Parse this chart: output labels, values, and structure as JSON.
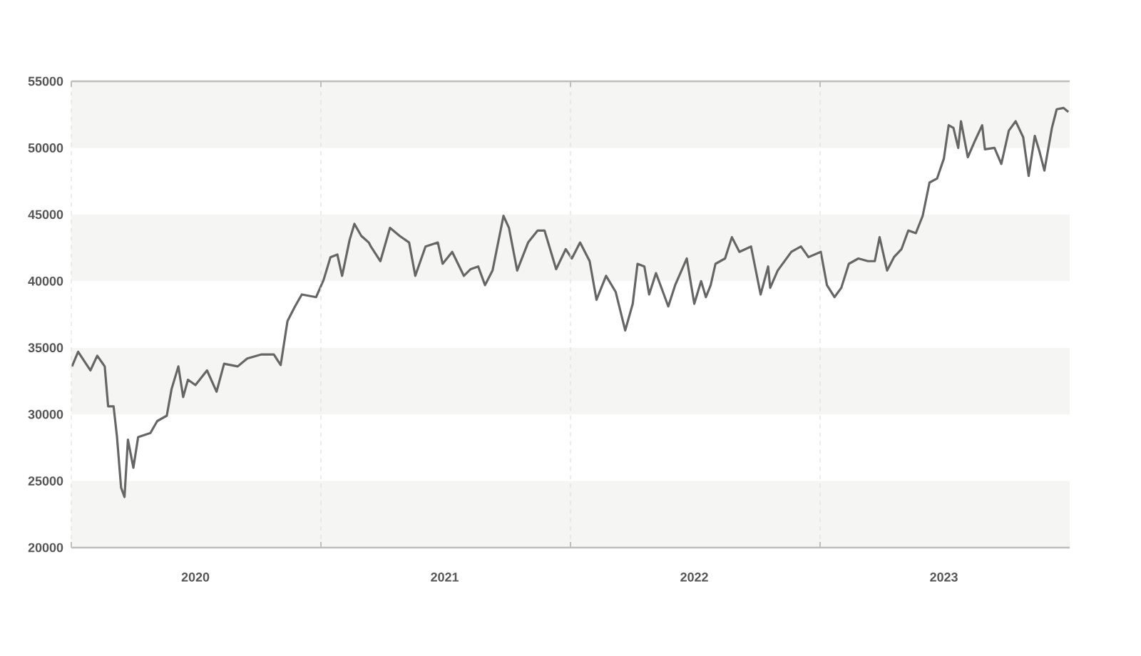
{
  "chart_data": {
    "type": "line",
    "x": [
      "2020-01-02",
      "2020-01-11",
      "2020-01-29",
      "2020-02-08",
      "2020-02-19",
      "2020-02-24",
      "2020-03-03",
      "2020-03-08",
      "2020-03-14",
      "2020-03-19",
      "2020-03-24",
      "2020-04-01",
      "2020-04-08",
      "2020-04-26",
      "2020-05-06",
      "2020-05-20",
      "2020-05-27",
      "2020-06-06",
      "2020-06-13",
      "2020-06-20",
      "2020-07-01",
      "2020-07-18",
      "2020-08-01",
      "2020-08-12",
      "2020-09-01",
      "2020-09-15",
      "2020-10-06",
      "2020-10-24",
      "2020-11-03",
      "2020-11-13",
      "2020-11-24",
      "2020-12-04",
      "2020-12-25",
      "2021-01-05",
      "2021-01-15",
      "2021-01-25",
      "2021-02-01",
      "2021-02-12",
      "2021-02-19",
      "2021-03-01",
      "2021-03-12",
      "2021-03-15",
      "2021-03-29",
      "2021-04-12",
      "2021-04-26",
      "2021-05-10",
      "2021-05-19",
      "2021-06-03",
      "2021-06-21",
      "2021-06-28",
      "2021-07-12",
      "2021-07-29",
      "2021-08-08",
      "2021-08-19",
      "2021-08-29",
      "2021-09-09",
      "2021-09-25",
      "2021-10-03",
      "2021-10-15",
      "2021-10-31",
      "2021-11-14",
      "2021-11-24",
      "2021-12-11",
      "2021-12-25",
      "2022-01-03",
      "2022-01-15",
      "2022-01-29",
      "2022-02-08",
      "2022-02-22",
      "2022-03-08",
      "2022-03-22",
      "2022-04-02",
      "2022-04-09",
      "2022-04-19",
      "2022-04-26",
      "2022-05-06",
      "2022-05-24",
      "2022-06-03",
      "2022-06-20",
      "2022-07-01",
      "2022-07-11",
      "2022-07-18",
      "2022-07-25",
      "2022-08-01",
      "2022-08-15",
      "2022-08-25",
      "2022-09-05",
      "2022-09-22",
      "2022-10-06",
      "2022-10-17",
      "2022-10-20",
      "2022-10-31",
      "2022-11-20",
      "2022-12-04",
      "2022-12-15",
      "2023-01-02",
      "2023-01-11",
      "2023-01-22",
      "2023-02-01",
      "2023-02-12",
      "2023-02-26",
      "2023-03-12",
      "2023-03-22",
      "2023-03-29",
      "2023-04-09",
      "2023-04-19",
      "2023-04-30",
      "2023-05-10",
      "2023-05-21",
      "2023-05-31",
      "2023-06-10",
      "2023-06-21",
      "2023-07-01",
      "2023-07-08",
      "2023-07-15",
      "2023-07-22",
      "2023-07-26",
      "2023-08-05",
      "2023-08-16",
      "2023-08-26",
      "2023-08-30",
      "2023-09-13",
      "2023-09-23",
      "2023-10-04",
      "2023-10-14",
      "2023-10-25",
      "2023-11-02",
      "2023-11-11",
      "2023-11-18",
      "2023-11-25",
      "2023-12-06",
      "2023-12-13",
      "2023-12-23",
      "2023-12-30"
    ],
    "values": [
      33600,
      34700,
      33300,
      34400,
      33600,
      30600,
      30600,
      28300,
      24500,
      23800,
      28100,
      26000,
      28300,
      28600,
      29500,
      29900,
      31900,
      33600,
      31300,
      32600,
      32200,
      33300,
      31700,
      33800,
      33600,
      34200,
      34500,
      34500,
      33700,
      37000,
      38100,
      39000,
      38800,
      40100,
      41800,
      42000,
      40400,
      43100,
      44300,
      43400,
      42900,
      42600,
      41500,
      44000,
      43400,
      42900,
      40400,
      42600,
      42900,
      41300,
      42200,
      40400,
      40900,
      41100,
      39700,
      40800,
      44900,
      44000,
      40800,
      42900,
      43800,
      43800,
      40900,
      42400,
      41700,
      42900,
      41500,
      38600,
      40400,
      39200,
      36300,
      38300,
      41300,
      41100,
      39000,
      40600,
      38100,
      39700,
      41700,
      38300,
      40000,
      38800,
      39700,
      41300,
      41700,
      43300,
      42200,
      42600,
      39000,
      41100,
      39500,
      40800,
      42200,
      42600,
      41800,
      42200,
      39700,
      38800,
      39500,
      41300,
      41700,
      41500,
      41500,
      43300,
      40800,
      41800,
      42400,
      43800,
      43600,
      44900,
      47400,
      47700,
      49200,
      51700,
      51500,
      50000,
      52000,
      49300,
      50600,
      51700,
      49900,
      50000,
      48800,
      51300,
      52000,
      50800,
      47900,
      50900,
      49700,
      48300,
      51500,
      52900,
      53000,
      52700
    ],
    "color": "#666666",
    "xlim": [
      "2020-01-01",
      "2024-01-01"
    ],
    "xticks": [
      {
        "value": "2020-01-01",
        "label": null
      },
      {
        "value": "2020-07-01",
        "label": "2020"
      },
      {
        "value": "2021-01-01",
        "label": null
      },
      {
        "value": "2021-07-01",
        "label": "2021"
      },
      {
        "value": "2022-01-01",
        "label": null
      },
      {
        "value": "2022-07-01",
        "label": "2022"
      },
      {
        "value": "2023-01-01",
        "label": null
      },
      {
        "value": "2023-07-01",
        "label": "2023"
      }
    ],
    "ylim": [
      20000,
      55000
    ],
    "yticks": [
      20000,
      25000,
      30000,
      35000,
      40000,
      45000,
      50000,
      55000
    ],
    "grid": "x",
    "bands": [
      {
        "axis": "y",
        "from": 20000,
        "to": 25000,
        "color": "#f5f5f3"
      },
      {
        "axis": "y",
        "from": 30000,
        "to": 35000,
        "color": "#f5f5f3"
      },
      {
        "axis": "y",
        "from": 40000,
        "to": 45000,
        "color": "#f5f5f3"
      },
      {
        "axis": "y",
        "from": 50000,
        "to": 55000,
        "color": "#f5f5f3"
      }
    ]
  }
}
